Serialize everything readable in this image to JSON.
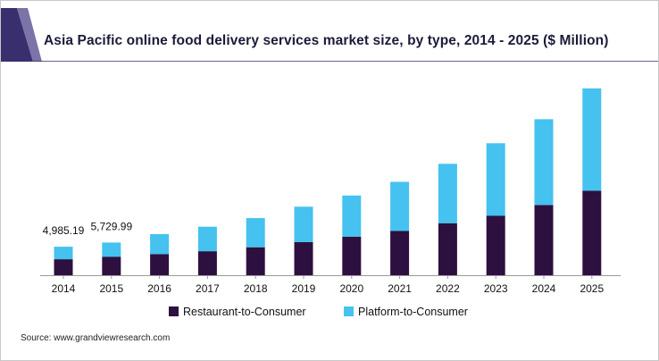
{
  "chart_data": {
    "type": "bar",
    "stacked": true,
    "title": "Asia Pacific online food delivery services market size, by type, 2014 - 2025 ($ Million)",
    "categories": [
      "2014",
      "2015",
      "2016",
      "2017",
      "2018",
      "2019",
      "2020",
      "2021",
      "2022",
      "2023",
      "2024",
      "2025"
    ],
    "series": [
      {
        "name": "Restaurant-to-Consumer",
        "color": "#2d1040",
        "values": [
          2800,
          3250,
          3700,
          4200,
          4900,
          5800,
          6750,
          7750,
          9100,
          10400,
          12300,
          14800
        ]
      },
      {
        "name": "Platform-to-Consumer",
        "color": "#45c2ef",
        "values": [
          2185.19,
          2479.99,
          3500,
          4300,
          5100,
          6200,
          7200,
          8600,
          10400,
          12700,
          15000,
          17900
        ]
      }
    ],
    "data_labels": [
      {
        "category": "2014",
        "text": "4,985.19"
      },
      {
        "category": "2015",
        "text": "5,729.99"
      }
    ],
    "ylim": [
      0,
      33000
    ],
    "xlabel": "",
    "ylabel": "",
    "grid": false,
    "legend_position": "bottom"
  },
  "source": "Source: www.grandviewresearch.com"
}
